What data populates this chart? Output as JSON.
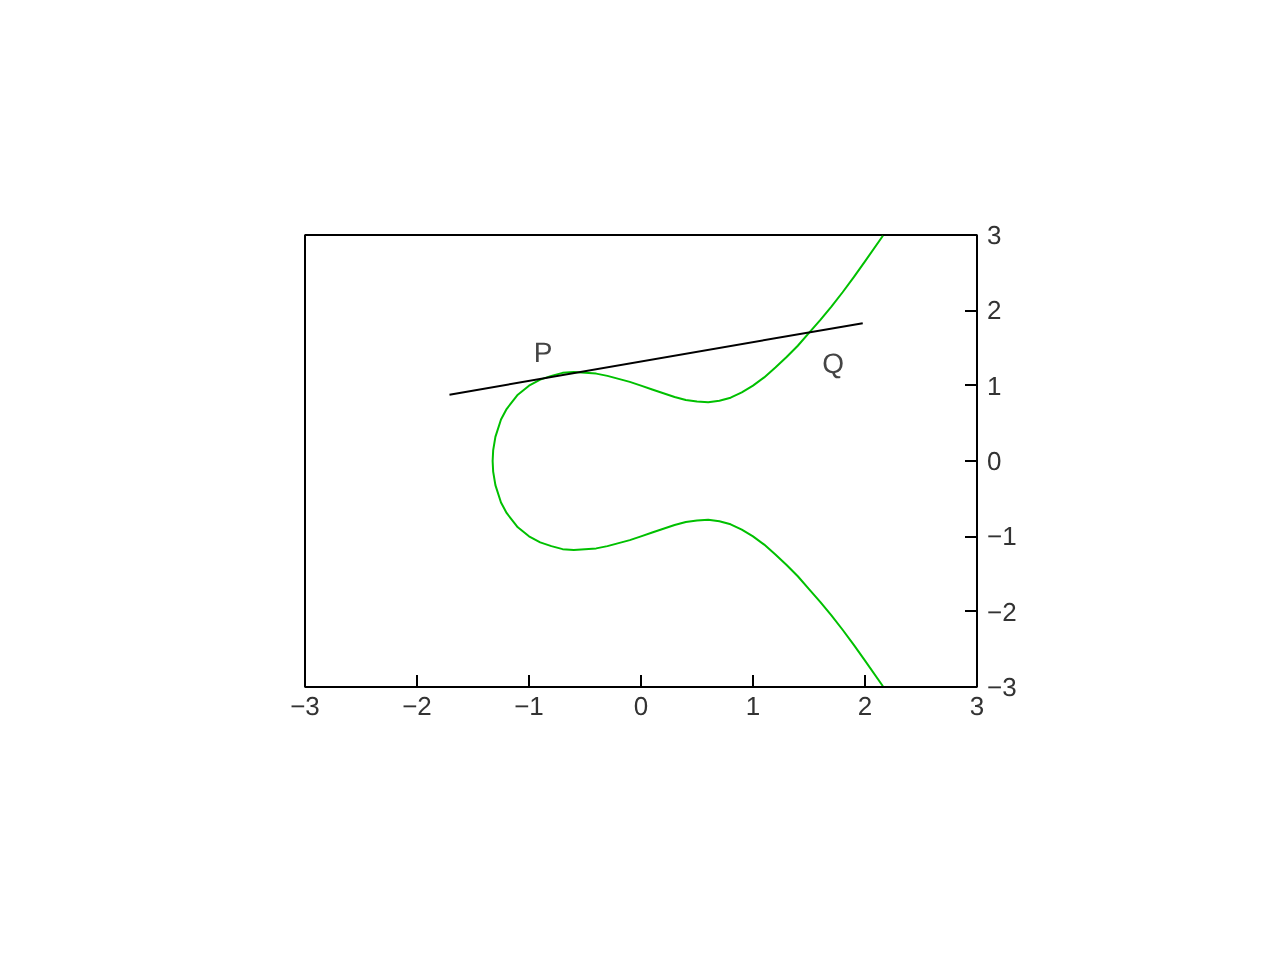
{
  "chart_data": {
    "type": "line",
    "xlim": [
      -3,
      3
    ],
    "ylim": [
      -3,
      3
    ],
    "xticks": [
      -3,
      -2,
      -1,
      0,
      1,
      2,
      3
    ],
    "yticks": [
      -3,
      -2,
      -1,
      0,
      1,
      2,
      3
    ],
    "grid": false,
    "marker": "none",
    "line_style": "solid",
    "series": [
      {
        "color": "#00c000",
        "x": [
          2.16,
          2.0,
          1.9,
          1.8,
          1.7,
          1.6,
          1.5,
          1.4,
          1.3,
          1.2,
          1.1,
          1.0,
          0.9,
          0.8,
          0.7,
          0.6,
          0.5,
          0.4,
          0.3,
          0.2,
          0.1,
          0.0,
          -0.1,
          -0.2,
          -0.3,
          -0.4,
          -0.5,
          -0.6,
          -0.7,
          -0.8,
          -0.9,
          -1.0,
          -1.1,
          -1.2,
          -1.25,
          -1.3,
          -1.32,
          -1.3247,
          -1.32,
          -1.3,
          -1.25,
          -1.2,
          -1.1,
          -1.0,
          -0.9,
          -0.8,
          -0.7,
          -0.6,
          -0.5,
          -0.4,
          -0.3,
          -0.2,
          -0.1,
          0.0,
          0.1,
          0.2,
          0.3,
          0.4,
          0.5,
          0.6,
          0.7,
          0.8,
          0.9,
          1.0,
          1.1,
          1.2,
          1.3,
          1.4,
          1.5,
          1.6,
          1.7,
          1.8,
          1.9,
          2.0,
          2.16
        ],
        "values": [
          2.99,
          2.65,
          2.44,
          2.24,
          2.05,
          1.87,
          1.7,
          1.53,
          1.38,
          1.24,
          1.11,
          1.0,
          0.91,
          0.84,
          0.8,
          0.78,
          0.79,
          0.81,
          0.85,
          0.9,
          0.95,
          1.0,
          1.05,
          1.09,
          1.13,
          1.16,
          1.17,
          1.18,
          1.17,
          1.13,
          1.08,
          1.0,
          0.88,
          0.69,
          0.55,
          0.32,
          0.14,
          0.0,
          -0.14,
          -0.32,
          -0.55,
          -0.69,
          -0.88,
          -1.0,
          -1.08,
          -1.13,
          -1.17,
          -1.18,
          -1.17,
          -1.16,
          -1.13,
          -1.09,
          -1.05,
          -1.0,
          -0.95,
          -0.9,
          -0.85,
          -0.81,
          -0.79,
          -0.78,
          -0.8,
          -0.84,
          -0.91,
          -1.0,
          -1.11,
          -1.24,
          -1.38,
          -1.53,
          -1.7,
          -1.87,
          -2.05,
          -2.24,
          -2.44,
          -2.65,
          -2.99
        ]
      },
      {
        "color": "#000000",
        "x": [
          -1.71,
          1.98
        ],
        "values": [
          0.88,
          1.83
        ]
      }
    ],
    "annotations": [
      {
        "text": "P",
        "x": -0.75,
        "y": 1.13
      },
      {
        "text": "Q",
        "x": 1.59,
        "y": 1.83
      }
    ]
  }
}
